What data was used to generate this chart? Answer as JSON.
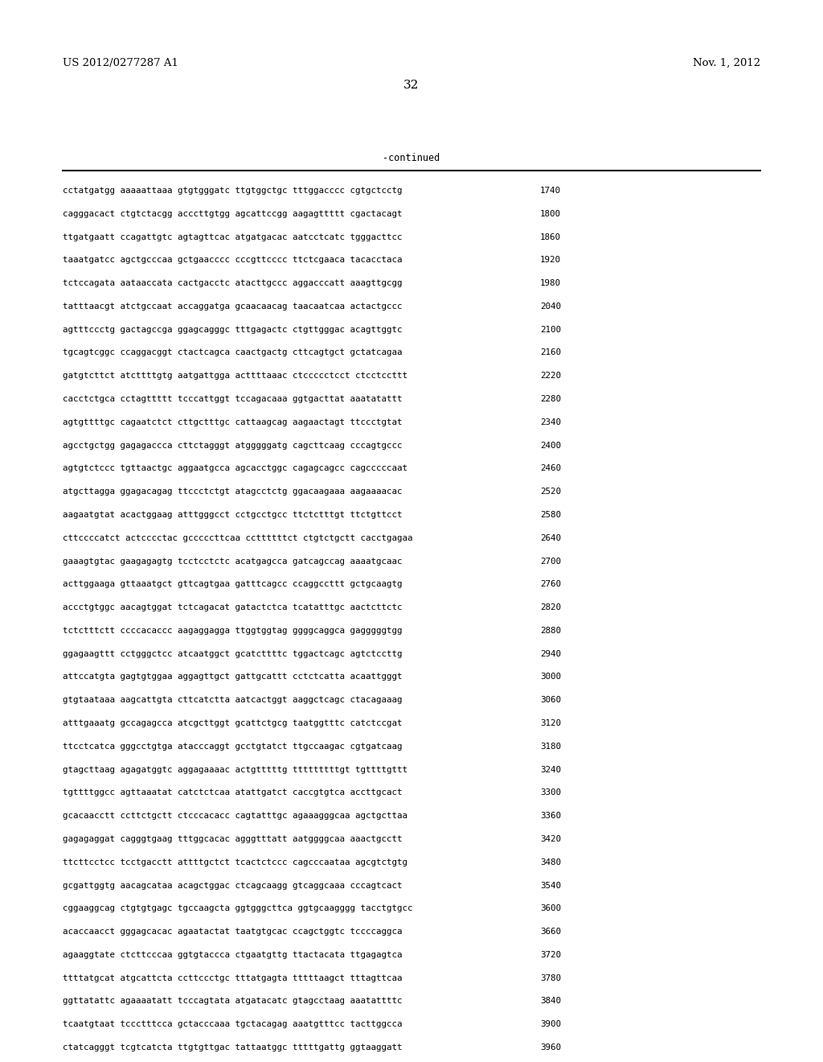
{
  "header_left": "US 2012/0277287 A1",
  "header_right": "Nov. 1, 2012",
  "page_number": "32",
  "continued_label": "-continued",
  "background_color": "#ffffff",
  "text_color": "#000000",
  "font_size_header": 9.5,
  "font_size_body": 7.8,
  "font_size_page": 11,
  "font_size_continued": 8.5,
  "sequence_lines": [
    [
      "cctatgatgg aaaaattaaa gtgtgggatc ttgtggctgc tttggacccc cgtgctcctg",
      "1740"
    ],
    [
      "cagggacact ctgtctacgg acccttgtgg agcattccgg aagagttttt cgactacagt",
      "1800"
    ],
    [
      "ttgatgaatt ccagattgtc agtagttcac atgatgacac aatcctcatc tgggacttcc",
      "1860"
    ],
    [
      "taaatgatcc agctgcccaa gctgaacccc cccgttcccc ttctcgaaca tacacctaca",
      "1920"
    ],
    [
      "tctccagata aataaccata cactgacctc atacttgccc aggacccatt aaagttgcgg",
      "1980"
    ],
    [
      "tatttaacgt atctgccaat accaggatga gcaacaacag taacaatcaa actactgccc",
      "2040"
    ],
    [
      "agtttccctg gactagccga ggagcagggc tttgagactc ctgttgggac acagttggtc",
      "2100"
    ],
    [
      "tgcagtcggc ccaggacggt ctactcagca caactgactg cttcagtgct gctatcagaa",
      "2160"
    ],
    [
      "gatgtcttct atcttttgtg aatgattgga acttttaaac ctccccctcct ctcctccttt",
      "2220"
    ],
    [
      "cacctctgca cctagttttt tcccattggt tccagacaaa ggtgacttat aaatatattt",
      "2280"
    ],
    [
      "agtgttttgc cagaatctct cttgctttgc cattaagcag aagaactagt ttccctgtat",
      "2340"
    ],
    [
      "agcctgctgg gagagaccca cttctagggt atgggggatg cagcttcaag cccagtgccc",
      "2400"
    ],
    [
      "agtgtctccc tgttaactgc aggaatgcca agcacctggc cagagcagcc cagcccccaat",
      "2460"
    ],
    [
      "atgcttagga ggagacagag ttccctctgt atagcctctg ggacaagaaa aagaaaacac",
      "2520"
    ],
    [
      "aagaatgtat acactggaag atttgggcct cctgcctgcc ttctctttgt ttctgttcct",
      "2580"
    ],
    [
      "cttccccatct actcccctac gcccccttcaa ccttttttct ctgtctgctt cacctgagaa",
      "2640"
    ],
    [
      "gaaagtgtac gaagagagtg tcctcctctc acatgagcca gatcagccag aaaatgcaac",
      "2700"
    ],
    [
      "acttggaaga gttaaatgct gttcagtgaa gatttcagcc ccaggccttt gctgcaagtg",
      "2760"
    ],
    [
      "accctgtggc aacagtggat tctcagacat gatactctca tcatatttgc aactcttctc",
      "2820"
    ],
    [
      "tctctttctt ccccacaccc aagaggagga ttggtggtag ggggcaggca gagggggtgg",
      "2880"
    ],
    [
      "ggagaagttt cctgggctcc atcaatggct gcatcttttc tggactcagc agtctccttg",
      "2940"
    ],
    [
      "attccatgta gagtgtggaa aggagttgct gattgcattt cctctcatta acaattgggt",
      "3000"
    ],
    [
      "gtgtaataaa aagcattgta cttcatctta aatcactggt aaggctcagc ctacagaaag",
      "3060"
    ],
    [
      "atttgaaatg gccagagcca atcgcttggt gcattctgcg taatggtttc catctccgat",
      "3120"
    ],
    [
      "ttcctcatca gggcctgtga atacccaggt gcctgtatct ttgccaagac cgtgatcaag",
      "3180"
    ],
    [
      "gtagcttaag agagatggtc aggagaaaac actgtttttg tttttttttgt tgttttgttt",
      "3240"
    ],
    [
      "tgttttggcc agttaaatat catctctcaa atattgatct caccgtgtca accttgcact",
      "3300"
    ],
    [
      "gcacaacctt ccttctgctt ctcccacacc cagtatttgc agaaagggcaa agctgcttaa",
      "3360"
    ],
    [
      "gagagaggat cagggtgaag tttggcacac agggtttatt aatggggcaa aaactgcctt",
      "3420"
    ],
    [
      "ttcttcctcc tcctgacctt attttgctct tcactctccc cagcccaataa agcgtctgtg",
      "3480"
    ],
    [
      "gcgattggtg aacagcataa acagctggac ctcagcaagg gtcaggcaaa cccagtcact",
      "3540"
    ],
    [
      "cggaaggcag ctgtgtgagc tgccaagcta ggtgggcttca ggtgcaagggg tacctgtgcc",
      "3600"
    ],
    [
      "acaccaacct gggagcacac agaatactat taatgtgcac ccagctggtc tccccaggca",
      "3660"
    ],
    [
      "agaaggtate ctcttcccaa ggtgtaccca ctgaatgttg ttactacata ttgagagtca",
      "3720"
    ],
    [
      "ttttatgcat atgcattcta ccttccctgc tttatgagta tttttaagct tttagttcaa",
      "3780"
    ],
    [
      "ggttatattc agaaaatatt tcccagtata atgatacatc gtagcctaag aaatattttc",
      "3840"
    ],
    [
      "tcaatgtaat tccctttcca gctacccaaa tgctacagag aaatgtttcc tacttggcca",
      "3900"
    ],
    [
      "ctatcagggt tcgtcatcta ttgtgttgac tattaatggc tttttgattg ggtaaggatt",
      "3960"
    ]
  ]
}
